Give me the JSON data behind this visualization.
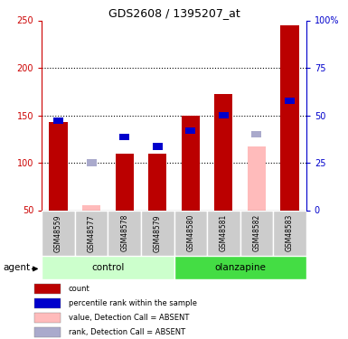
{
  "title": "GDS2608 / 1395207_at",
  "samples": [
    "GSM48559",
    "GSM48577",
    "GSM48578",
    "GSM48579",
    "GSM48580",
    "GSM48581",
    "GSM48582",
    "GSM48583"
  ],
  "red_values": [
    143,
    0,
    110,
    110,
    150,
    172,
    0,
    245
  ],
  "pink_values": [
    0,
    55,
    0,
    0,
    0,
    0,
    117,
    0
  ],
  "blue_values": [
    144,
    0,
    127,
    117,
    134,
    150,
    0,
    165
  ],
  "light_blue_values": [
    0,
    100,
    0,
    0,
    0,
    0,
    130,
    0
  ],
  "ylim_left": [
    50,
    250
  ],
  "ylim_right": [
    0,
    100
  ],
  "yticks_left": [
    50,
    100,
    150,
    200,
    250
  ],
  "yticks_right": [
    0,
    25,
    50,
    75,
    100
  ],
  "ytick_labels_right": [
    "0",
    "25",
    "50",
    "75",
    "100%"
  ],
  "grid_lines": [
    100,
    150,
    200
  ],
  "colors": {
    "red_bar": "#BB0000",
    "pink_bar": "#FFBBBB",
    "blue_sq": "#0000CC",
    "light_blue_sq": "#AAAACC",
    "control_bg_light": "#CCFFCC",
    "olanzapine_bg": "#44DD44",
    "sample_bg": "#CCCCCC",
    "left_axis": "#CC0000",
    "right_axis": "#0000CC",
    "white": "#FFFFFF"
  },
  "legend_labels": [
    "count",
    "percentile rank within the sample",
    "value, Detection Call = ABSENT",
    "rank, Detection Call = ABSENT"
  ],
  "legend_colors": [
    "#BB0000",
    "#0000CC",
    "#FFBBBB",
    "#AAAACC"
  ]
}
